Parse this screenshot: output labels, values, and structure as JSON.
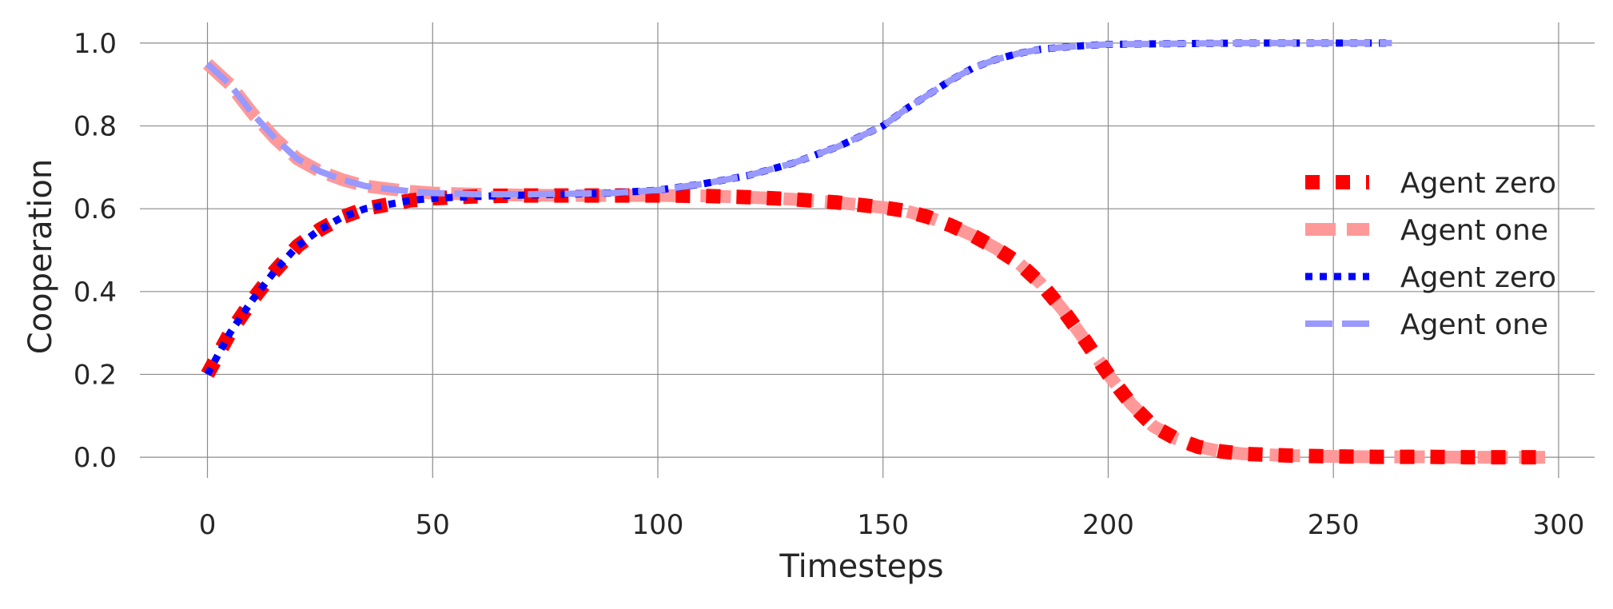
{
  "chart_data": {
    "type": "line",
    "title": "",
    "xlabel": "Timesteps",
    "ylabel": "Cooperation",
    "xlim": [
      -15,
      308
    ],
    "ylim": [
      -0.05,
      1.05
    ],
    "xticks": [
      "0",
      "50",
      "100",
      "150",
      "200",
      "250",
      "300"
    ],
    "yticks": [
      "0.0",
      "0.2",
      "0.4",
      "0.6",
      "0.8",
      "1.0"
    ],
    "grid": true,
    "legend_position": "right",
    "series": [
      {
        "name": "Agent zero",
        "color": "#ff0000",
        "style": "dotted-square",
        "x": [
          0,
          5,
          10,
          15,
          20,
          25,
          30,
          35,
          40,
          45,
          50,
          60,
          70,
          80,
          90,
          100,
          110,
          120,
          130,
          140,
          150,
          155,
          160,
          165,
          170,
          175,
          180,
          185,
          190,
          195,
          200,
          205,
          210,
          215,
          220,
          225,
          230,
          240,
          250,
          260,
          270,
          280,
          290,
          297
        ],
        "y": [
          0.2,
          0.3,
          0.38,
          0.45,
          0.51,
          0.55,
          0.58,
          0.6,
          0.61,
          0.62,
          0.625,
          0.63,
          0.632,
          0.632,
          0.632,
          0.632,
          0.631,
          0.628,
          0.623,
          0.615,
          0.603,
          0.595,
          0.58,
          0.56,
          0.535,
          0.505,
          0.47,
          0.42,
          0.355,
          0.28,
          0.2,
          0.13,
          0.075,
          0.045,
          0.025,
          0.014,
          0.008,
          0.004,
          0.002,
          0.001,
          0.001,
          0.0,
          0.0,
          0.0
        ]
      },
      {
        "name": "Agent one",
        "color": "#ff9999",
        "style": "dashed-thick",
        "x": [
          0,
          5,
          10,
          15,
          20,
          25,
          30,
          35,
          40,
          45,
          50,
          60,
          70,
          80,
          90,
          100,
          110,
          120,
          130,
          140,
          150,
          155,
          160,
          165,
          170,
          175,
          180,
          185,
          190,
          195,
          200,
          205,
          210,
          215,
          220,
          225,
          230,
          240,
          250,
          260,
          270,
          280,
          290,
          297
        ],
        "y": [
          0.95,
          0.9,
          0.83,
          0.77,
          0.72,
          0.69,
          0.67,
          0.655,
          0.648,
          0.642,
          0.638,
          0.635,
          0.633,
          0.632,
          0.632,
          0.632,
          0.631,
          0.628,
          0.623,
          0.615,
          0.603,
          0.595,
          0.58,
          0.56,
          0.535,
          0.505,
          0.47,
          0.42,
          0.355,
          0.28,
          0.2,
          0.13,
          0.075,
          0.045,
          0.025,
          0.014,
          0.008,
          0.004,
          0.002,
          0.001,
          0.001,
          0.0,
          0.0,
          0.0
        ]
      },
      {
        "name": "Agent zero",
        "color": "#0000ff",
        "style": "dotted",
        "x": [
          0,
          5,
          10,
          15,
          20,
          25,
          30,
          35,
          40,
          45,
          50,
          60,
          70,
          80,
          90,
          100,
          110,
          120,
          130,
          140,
          150,
          155,
          160,
          165,
          170,
          175,
          180,
          185,
          190,
          195,
          200,
          210,
          220,
          230,
          240,
          250,
          263
        ],
        "y": [
          0.2,
          0.3,
          0.38,
          0.45,
          0.51,
          0.55,
          0.58,
          0.6,
          0.61,
          0.62,
          0.625,
          0.63,
          0.633,
          0.635,
          0.638,
          0.645,
          0.66,
          0.68,
          0.71,
          0.75,
          0.8,
          0.84,
          0.875,
          0.91,
          0.94,
          0.96,
          0.975,
          0.985,
          0.99,
          0.994,
          0.997,
          0.998,
          0.999,
          1.0,
          1.0,
          1.0,
          1.0
        ]
      },
      {
        "name": "Agent one",
        "color": "#9999ff",
        "style": "dashed",
        "x": [
          0,
          5,
          10,
          15,
          20,
          25,
          30,
          35,
          40,
          45,
          50,
          60,
          70,
          80,
          90,
          100,
          110,
          120,
          130,
          140,
          150,
          155,
          160,
          165,
          170,
          175,
          180,
          185,
          190,
          195,
          200,
          210,
          220,
          230,
          240,
          250,
          263
        ],
        "y": [
          0.95,
          0.9,
          0.83,
          0.77,
          0.72,
          0.69,
          0.67,
          0.655,
          0.648,
          0.642,
          0.638,
          0.635,
          0.635,
          0.636,
          0.638,
          0.645,
          0.66,
          0.68,
          0.71,
          0.75,
          0.8,
          0.84,
          0.875,
          0.91,
          0.94,
          0.96,
          0.975,
          0.985,
          0.99,
          0.994,
          0.997,
          0.998,
          0.999,
          1.0,
          1.0,
          1.0,
          1.0
        ]
      }
    ]
  }
}
